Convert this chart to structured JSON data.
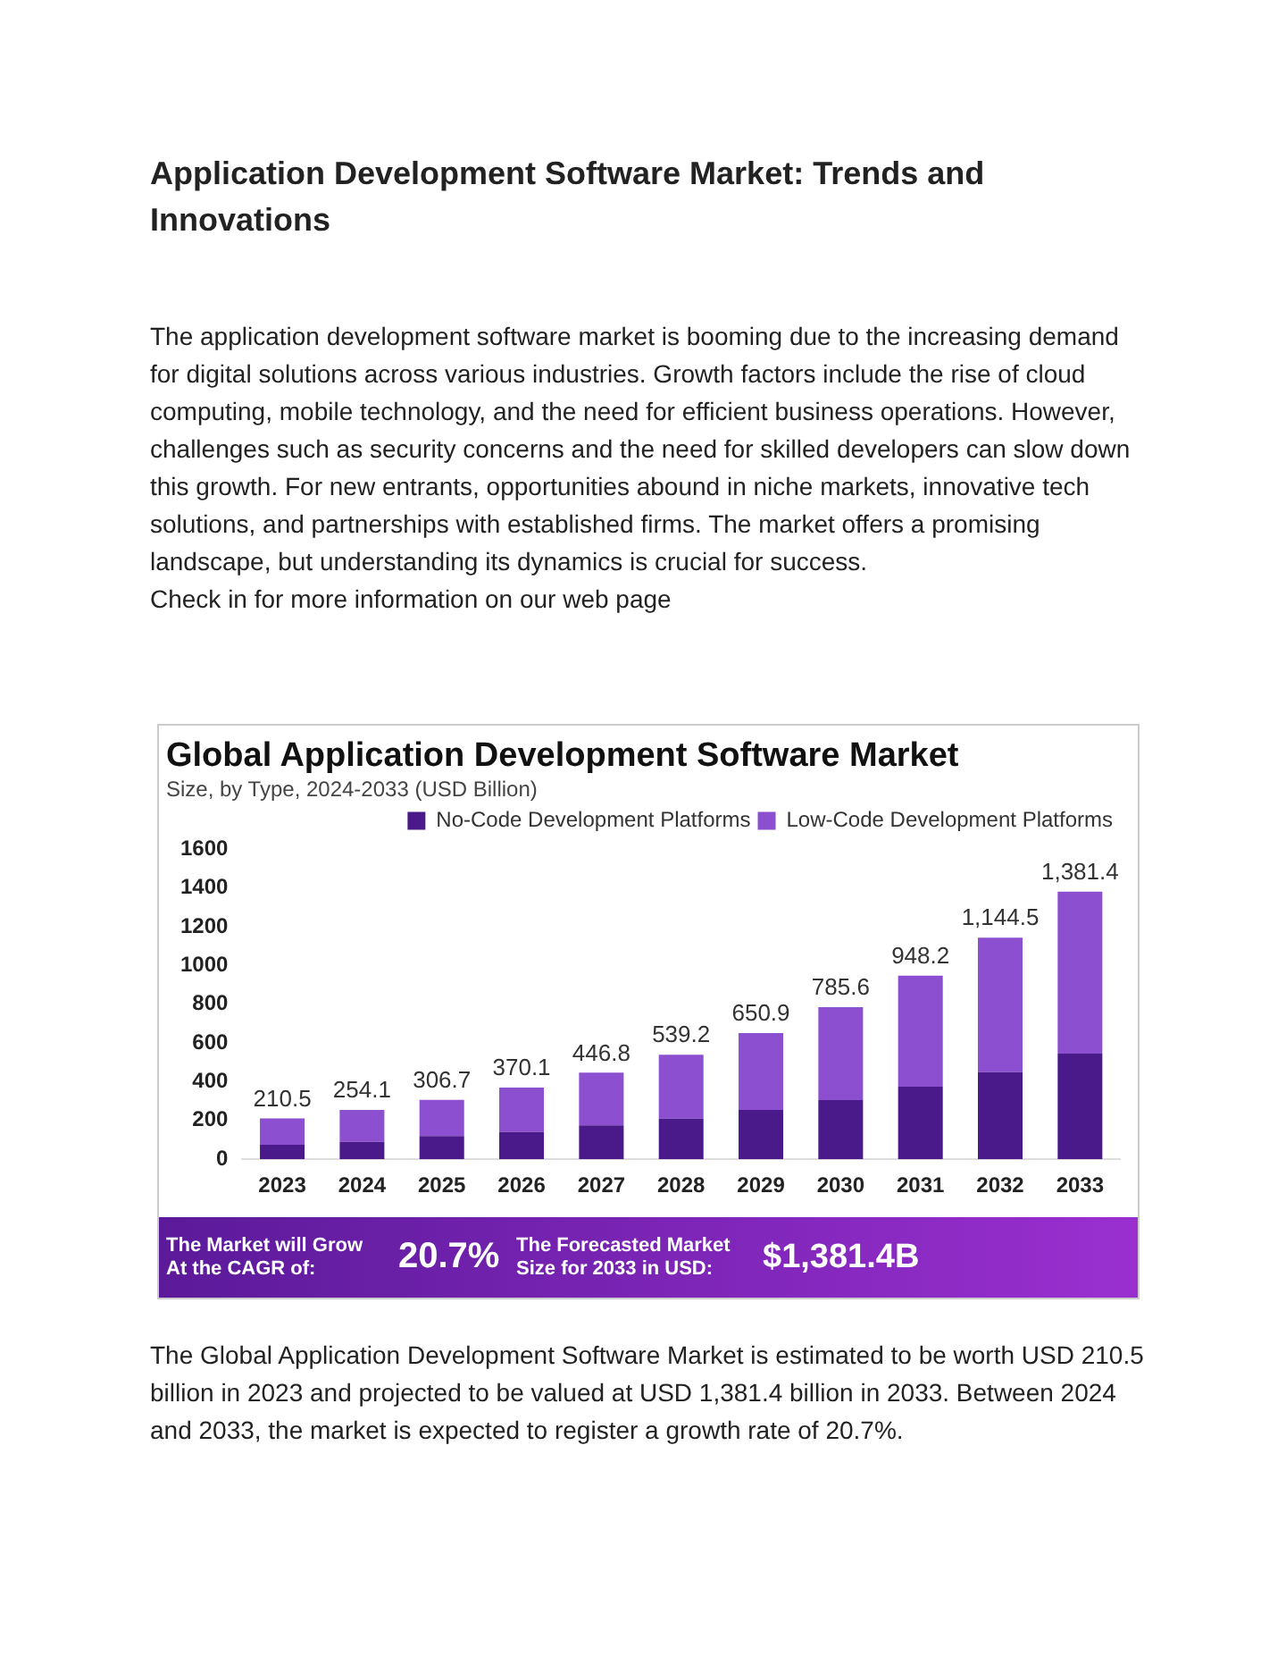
{
  "chart_data": {
    "type": "bar",
    "title": "Global Application Development Software Market",
    "subtitle": "Size, by Type, 2024-2033 (USD Billion)",
    "categories": [
      "2023",
      "2024",
      "2025",
      "2026",
      "2027",
      "2028",
      "2029",
      "2030",
      "2031",
      "2032",
      "2033"
    ],
    "series": [
      {
        "name": "No-Code Development Platforms",
        "color": "#4a1a8a",
        "values": [
          75,
          90,
          120,
          140,
          175,
          210,
          255,
          305,
          375,
          450,
          545
        ]
      },
      {
        "name": "Low-Code Development Platforms",
        "color": "#8b4fd0",
        "values": [
          135.5,
          164.1,
          186.7,
          230.1,
          271.8,
          329.2,
          395.9,
          480.6,
          573.2,
          694.5,
          836.4
        ]
      }
    ],
    "stacked": true,
    "totals": [
      "210.5",
      "254.1",
      "306.7",
      "370.1",
      "446.8",
      "539.2",
      "650.9",
      "785.6",
      "948.2",
      "1,144.5",
      "1,381.4"
    ],
    "ylim": [
      0,
      1600
    ],
    "yticks": [
      0,
      200,
      400,
      600,
      800,
      1000,
      1200,
      1400,
      1600
    ],
    "grid": false,
    "legend": "top right",
    "annotations": [
      "Application Development Software Market: Trends and Innovations",
      "The application development software market is booming due to the increasing demand for digital solutions across various industries. Growth factors include the rise of cloud computing, mobile technology, and the need for efficient business operations. However, challenges such as security concerns and the need for skilled developers can slow down this growth. For new entrants, opportunities abound in niche markets, innovative tech solutions, and partnerships with established firms. The market offers a promising landscape, but understanding its dynamics is crucial for success.",
      "Check in for more information on our web page",
      "The Market will Grow At the CAGR of:",
      "20.7%",
      "The Forecasted Market Size for 2033 in USD:",
      "$1,381.4B",
      "The Global Application Development Software Market is estimated to be worth USD 210.5 billion in 2023 and projected to be valued at USD 1,381.4 billion in 2033. Between 2024 and 2033, the market is expected to register a growth rate of 20.7%."
    ]
  }
}
